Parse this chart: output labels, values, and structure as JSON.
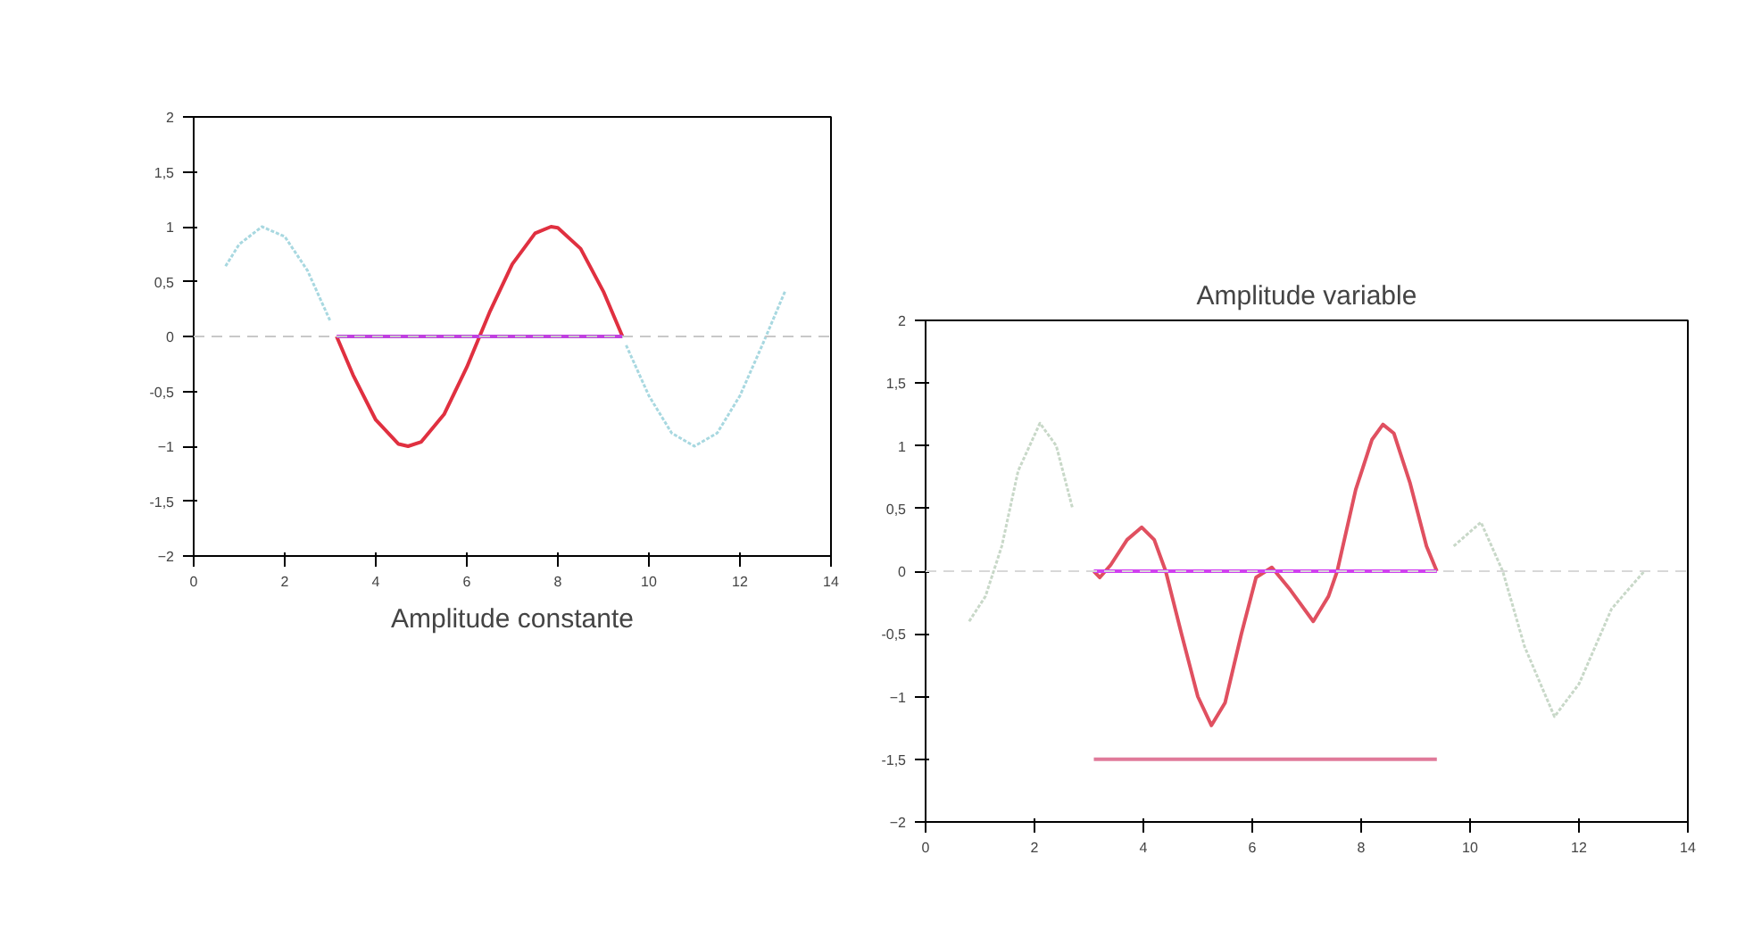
{
  "chart_data": [
    {
      "type": "line",
      "title": "Amplitude constante",
      "xlim": [
        0,
        14
      ],
      "ylim": [
        -2,
        2
      ],
      "xticks": [
        0,
        2,
        4,
        6,
        8,
        10,
        12,
        14
      ],
      "yticks": [
        -2,
        {
          "value": -1.5,
          "label": "-1,5"
        },
        -1,
        {
          "value": -0.5,
          "label": "-0,5"
        },
        0,
        {
          "value": 0.5,
          "label": "0,5"
        },
        1,
        {
          "value": 1.5,
          "label": "1,5"
        },
        2
      ],
      "grid": false,
      "ref_lines": [
        {
          "axis": "y",
          "value": 0,
          "color": "#c8c8c8",
          "line_style": "dashed"
        }
      ],
      "series": [
        {
          "color": "#a8d8e0",
          "line_style": "dotted",
          "x": [
            0.7,
            1,
            1.5,
            2,
            2.5,
            3,
            3.14,
            9.42,
            9.5,
            10,
            10.5,
            11,
            11.5,
            12,
            12.5,
            13
          ],
          "values": [
            0.64,
            0.84,
            1.0,
            0.91,
            0.6,
            0.14,
            null,
            null,
            -0.08,
            -0.54,
            -0.88,
            -1.0,
            -0.88,
            -0.54,
            -0.07,
            0.42
          ]
        },
        {
          "color": "#e03040",
          "line_style": "solid",
          "x": [
            3.14,
            3.5,
            4,
            4.5,
            4.71,
            5,
            5.5,
            6,
            6.28,
            6.5,
            7,
            7.5,
            7.85,
            8,
            8.5,
            9,
            9.42
          ],
          "values": [
            0,
            -0.35,
            -0.76,
            -0.98,
            -1,
            -0.96,
            -0.71,
            -0.28,
            0,
            0.22,
            0.66,
            0.94,
            1,
            0.99,
            0.8,
            0.41,
            0
          ]
        },
        {
          "color": "#c040e0",
          "line_style": "solid",
          "x": [
            3.14,
            9.42
          ],
          "values": [
            0,
            0
          ]
        }
      ]
    },
    {
      "type": "line",
      "title": "Amplitude variable",
      "xlim": [
        0,
        14
      ],
      "ylim": [
        -2,
        2
      ],
      "xticks": [
        0,
        2,
        4,
        6,
        8,
        10,
        12,
        14
      ],
      "yticks": [
        -2,
        {
          "value": -1.5,
          "label": "-1,5"
        },
        -1,
        {
          "value": -0.5,
          "label": "-0,5"
        },
        0,
        {
          "value": 0.5,
          "label": "0,5"
        },
        1,
        {
          "value": 1.5,
          "label": "1,5"
        },
        2
      ],
      "grid": false,
      "ref_lines": [
        {
          "axis": "y",
          "value": 0,
          "color": "#d8d8d8",
          "line_style": "dashed"
        }
      ],
      "series": [
        {
          "color": "#c8d8c8",
          "line_style": "dotted",
          "x": [
            0.8,
            1.1,
            1.4,
            1.7,
            2.1,
            2.4,
            2.7,
            3.09,
            9.39,
            9.7,
            10.2,
            10.6,
            11.0,
            11.55,
            12.0,
            12.6,
            13.2
          ],
          "values": [
            -0.4,
            -0.2,
            0.2,
            0.8,
            1.18,
            1.0,
            0.5,
            null,
            null,
            0.2,
            0.39,
            0,
            -0.6,
            -1.16,
            -0.9,
            -0.3,
            0
          ]
        },
        {
          "color": "#e05060",
          "line_style": "solid",
          "x": [
            3.09,
            3.2,
            3.4,
            3.7,
            3.97,
            4.2,
            4.41,
            4.7,
            5.0,
            5.25,
            5.5,
            5.8,
            6.07,
            6.36,
            6.7,
            7.12,
            7.4,
            7.56,
            7.9,
            8.2,
            8.4,
            8.6,
            8.9,
            9.2,
            9.39
          ],
          "values": [
            0,
            -0.05,
            0.05,
            0.25,
            0.35,
            0.25,
            0,
            -0.5,
            -1.0,
            -1.23,
            -1.05,
            -0.5,
            -0.05,
            0.03,
            -0.15,
            -0.4,
            -0.2,
            0,
            0.65,
            1.05,
            1.17,
            1.1,
            0.7,
            0.2,
            0
          ]
        },
        {
          "color": "#d040f0",
          "line_style": "solid",
          "x": [
            3.09,
            9.39
          ],
          "values": [
            0,
            0
          ]
        },
        {
          "color": "#e07a9a",
          "line_style": "solid",
          "x": [
            3.09,
            9.39
          ],
          "values": [
            -1.5,
            -1.5
          ]
        }
      ]
    }
  ]
}
